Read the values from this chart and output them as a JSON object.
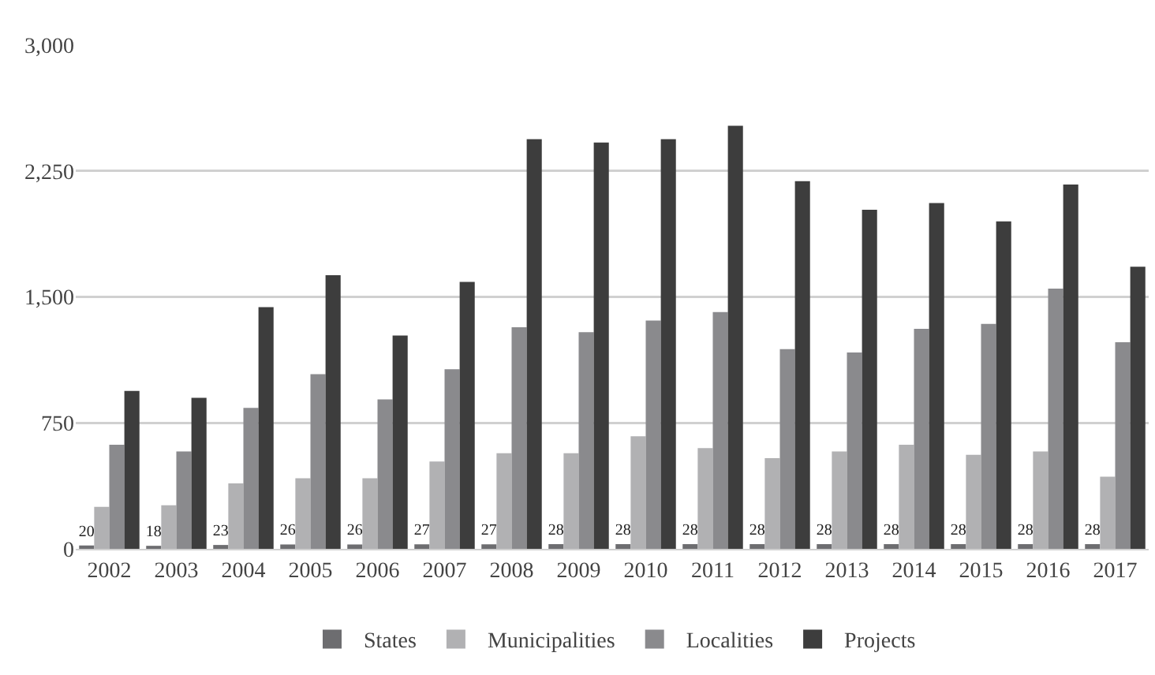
{
  "chart_data": {
    "type": "bar",
    "categories": [
      "2002",
      "2003",
      "2004",
      "2005",
      "2006",
      "2007",
      "2008",
      "2009",
      "2010",
      "2011",
      "2012",
      "2013",
      "2014",
      "2015",
      "2016",
      "2017"
    ],
    "series": [
      {
        "name": "States",
        "color": "#6d6d70",
        "values": [
          20,
          18,
          23,
          26,
          26,
          27,
          27,
          28,
          28,
          28,
          28,
          28,
          28,
          28,
          28,
          28
        ],
        "value_labels": [
          "20",
          "18",
          "23",
          "26",
          "26",
          "27",
          "27",
          "28",
          "28",
          "28",
          "28",
          "28",
          "28",
          "28",
          "28",
          "28"
        ]
      },
      {
        "name": "Municipalities",
        "color": "#b1b1b3",
        "values": [
          250,
          260,
          390,
          420,
          420,
          520,
          570,
          570,
          670,
          600,
          540,
          580,
          620,
          560,
          580,
          430
        ]
      },
      {
        "name": "Localities",
        "color": "#8a8a8d",
        "values": [
          620,
          580,
          840,
          1040,
          890,
          1070,
          1320,
          1290,
          1360,
          1410,
          1190,
          1170,
          1310,
          1340,
          1550,
          1230
        ]
      },
      {
        "name": "Projects",
        "color": "#3d3d3d",
        "values": [
          940,
          900,
          1440,
          1630,
          1270,
          1590,
          2440,
          2420,
          2440,
          2520,
          2190,
          2020,
          2060,
          1950,
          2170,
          1680
        ]
      }
    ],
    "ylim": [
      0,
      3000
    ],
    "yticks": [
      0,
      {
        "value": 750,
        "label": "750"
      },
      {
        "value": 1500,
        "label": "1,500"
      },
      {
        "value": 2250,
        "label": "2,250"
      },
      {
        "value": 3000,
        "label": "3,000"
      }
    ],
    "grid": "y",
    "legend": "bottom"
  }
}
